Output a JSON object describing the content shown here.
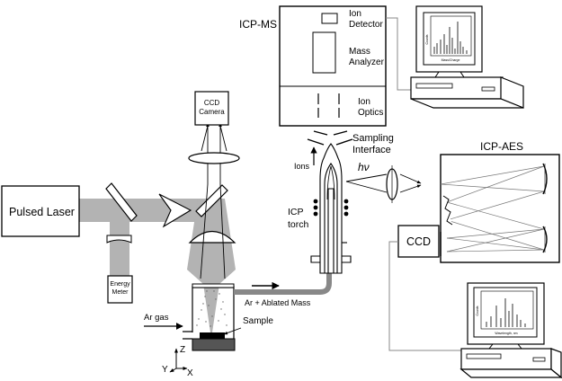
{
  "labels": {
    "pulsed_laser": "Pulsed Laser",
    "energy_meter_1": "Energy",
    "energy_meter_2": "Meter",
    "ccd_camera_1": "CCD",
    "ccd_camera_2": "Camera",
    "icp_ms": "ICP-MS",
    "ion_detector_1": "Ion",
    "ion_detector_2": "Detector",
    "mass_analyzer_1": "Mass",
    "mass_analyzer_2": "Analyzer",
    "ion_optics_1": "Ion",
    "ion_optics_2": "Optics",
    "sampling_interface_1": "Sampling",
    "sampling_interface_2": "Interface",
    "ions": "Ions",
    "hv": "hν",
    "icp_torch_1": "ICP",
    "icp_torch_2": "torch",
    "icp_aes": "ICP-AES",
    "ccd": "CCD",
    "ar_gas": "Ar gas",
    "ar_ablated": "Ar + Ablated Mass",
    "sample": "Sample",
    "axis_z": "Z",
    "axis_y": "Y",
    "axis_x": "X"
  },
  "monitor_ms": {
    "xlabel": "Mass/Charge",
    "ylabel": "Counts"
  },
  "monitor_aes": {
    "xlabel": "Wavelength, nm",
    "ylabel": "Counts"
  }
}
